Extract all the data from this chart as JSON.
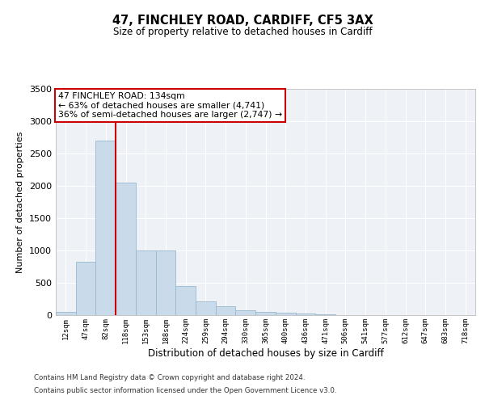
{
  "title1": "47, FINCHLEY ROAD, CARDIFF, CF5 3AX",
  "title2": "Size of property relative to detached houses in Cardiff",
  "xlabel": "Distribution of detached houses by size in Cardiff",
  "ylabel": "Number of detached properties",
  "categories": [
    "12sqm",
    "47sqm",
    "82sqm",
    "118sqm",
    "153sqm",
    "188sqm",
    "224sqm",
    "259sqm",
    "294sqm",
    "330sqm",
    "365sqm",
    "400sqm",
    "436sqm",
    "471sqm",
    "506sqm",
    "541sqm",
    "577sqm",
    "612sqm",
    "647sqm",
    "683sqm",
    "718sqm"
  ],
  "values": [
    50,
    830,
    2700,
    2050,
    1000,
    1000,
    450,
    210,
    135,
    80,
    50,
    38,
    22,
    12,
    5,
    2,
    1,
    0,
    0,
    0,
    0
  ],
  "bar_color": "#c9daea",
  "bar_edge_color": "#9ab8cc",
  "vline_x_index": 3,
  "vline_color": "#cc0000",
  "annotation_line1": "47 FINCHLEY ROAD: 134sqm",
  "annotation_line2": "← 63% of detached houses are smaller (4,741)",
  "annotation_line3": "36% of semi-detached houses are larger (2,747) →",
  "annotation_box_color": "#cc0000",
  "ylim": [
    0,
    3500
  ],
  "yticks": [
    0,
    500,
    1000,
    1500,
    2000,
    2500,
    3000,
    3500
  ],
  "plot_bg_color": "#eef2f7",
  "grid_color": "white",
  "footer1": "Contains HM Land Registry data © Crown copyright and database right 2024.",
  "footer2": "Contains public sector information licensed under the Open Government Licence v3.0."
}
